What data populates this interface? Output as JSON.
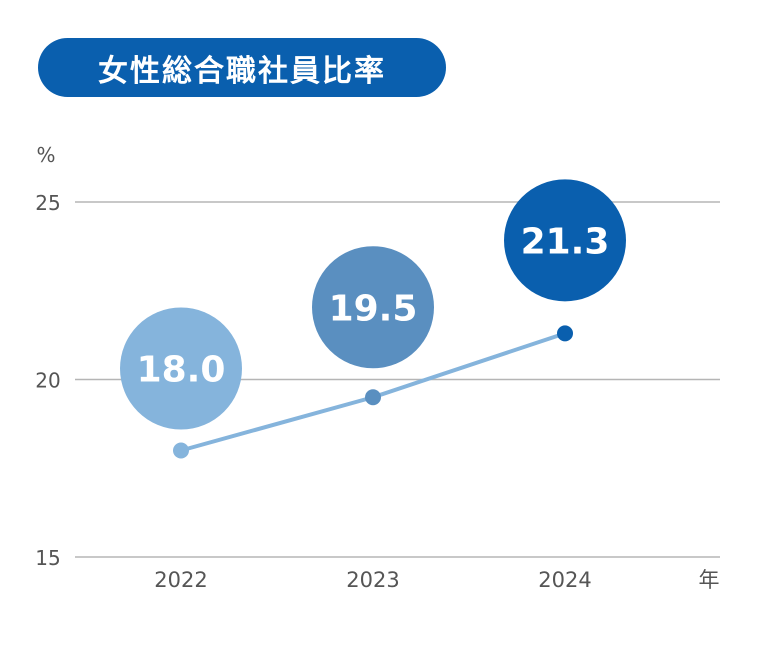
{
  "chart_data": {
    "type": "line",
    "title": "女性総合職社員比率",
    "ylabel": "%",
    "xlabel": "年",
    "ylim": [
      15,
      25
    ],
    "yticks": [
      15,
      20,
      25
    ],
    "categories": [
      "2022",
      "2023",
      "2024"
    ],
    "series": [
      {
        "values": [
          18.0,
          19.5,
          21.3
        ],
        "labels": [
          "18.0",
          "19.5",
          "21.3"
        ]
      }
    ],
    "grid": true,
    "colors": {
      "title_bg": "#0a5fae",
      "line": "#85b4dc",
      "points": [
        "#85b4dc",
        "#5a8fc0",
        "#0a5fae"
      ],
      "bubbles": [
        "#85b4dc",
        "#5a8fc0",
        "#0a5fae"
      ],
      "grid": "#b5b5b5"
    }
  }
}
